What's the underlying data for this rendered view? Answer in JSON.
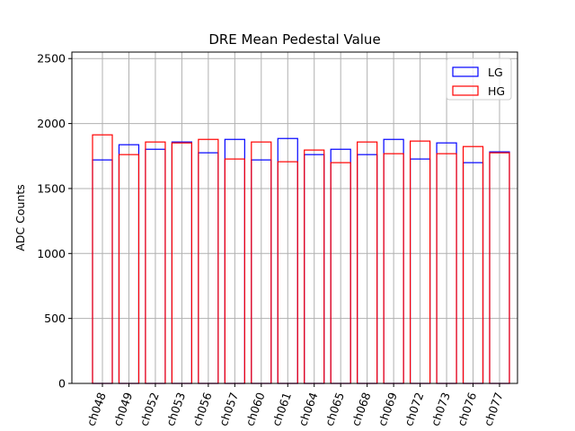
{
  "chart_data": {
    "type": "bar",
    "title": "DRE Mean Pedestal Value",
    "xlabel": "",
    "ylabel": "ADC Counts",
    "ylim": [
      0,
      2550
    ],
    "yticks": [
      0,
      500,
      1000,
      1500,
      2000,
      2500
    ],
    "grid": true,
    "legend_position": "top-right",
    "categories": [
      "ch048",
      "ch049",
      "ch052",
      "ch053",
      "ch056",
      "ch057",
      "ch060",
      "ch061",
      "ch064",
      "ch065",
      "ch068",
      "ch069",
      "ch072",
      "ch073",
      "ch076",
      "ch077"
    ],
    "series": [
      {
        "name": "LG",
        "color": "#0000ff",
        "fill": "none",
        "values": [
          1720,
          1837,
          1802,
          1858,
          1775,
          1878,
          1720,
          1885,
          1761,
          1802,
          1761,
          1878,
          1727,
          1851,
          1699,
          1782
        ]
      },
      {
        "name": "HG",
        "color": "#ff0000",
        "fill": "none",
        "values": [
          1913,
          1761,
          1858,
          1851,
          1878,
          1727,
          1858,
          1706,
          1796,
          1699,
          1858,
          1768,
          1865,
          1768,
          1823,
          1775
        ]
      }
    ],
    "xtick_rotation": "70deg"
  }
}
